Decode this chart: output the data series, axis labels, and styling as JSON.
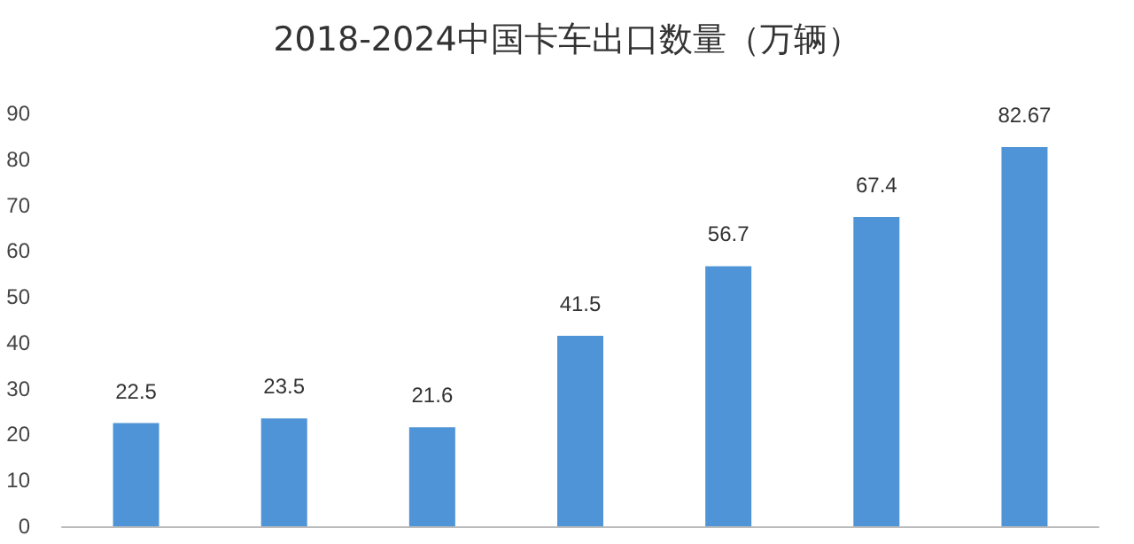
{
  "chart_data": {
    "type": "bar",
    "title": "2018-2024中国卡车出口数量（万辆）",
    "categories": [
      null,
      null,
      null,
      null,
      null,
      null,
      null
    ],
    "values": [
      22.5,
      23.5,
      21.6,
      41.5,
      56.7,
      67.4,
      82.67
    ],
    "color": "#4f94d6",
    "ylim": [
      0,
      90
    ],
    "yticks": [
      0,
      10,
      20,
      30,
      40,
      50,
      60,
      70,
      80,
      90
    ],
    "data_labels": true,
    "grid": false
  }
}
